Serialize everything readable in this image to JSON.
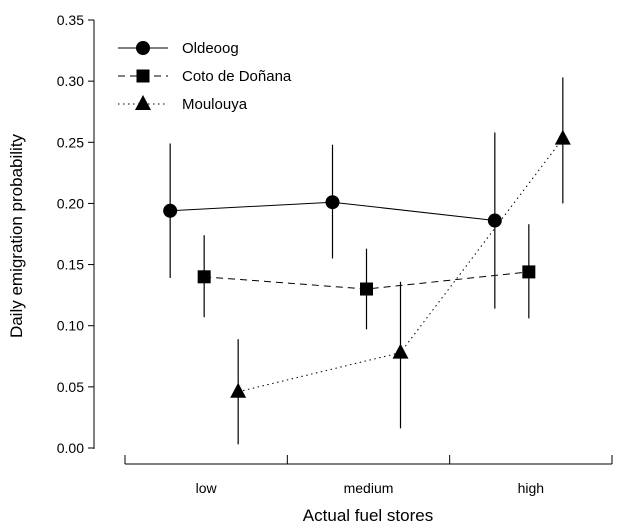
{
  "chart_data": {
    "type": "line",
    "xlabel": "Actual fuel stores",
    "ylabel": "Daily emigration probability",
    "categories": [
      "low",
      "medium",
      "high"
    ],
    "ylim": [
      0,
      0.35
    ],
    "yticks": [
      "0.00",
      "0.05",
      "0.10",
      "0.15",
      "0.20",
      "0.25",
      "0.30",
      "0.35"
    ],
    "legend_position": "top-left",
    "series": [
      {
        "name": "Oldeoog",
        "marker": "circle",
        "line": "solid",
        "values": [
          0.194,
          0.201,
          0.186
        ],
        "lower": [
          0.139,
          0.155,
          0.114
        ],
        "upper": [
          0.249,
          0.248,
          0.258
        ]
      },
      {
        "name": "Coto de Doñana",
        "marker": "square",
        "line": "dashed",
        "values": [
          0.14,
          0.13,
          0.144
        ],
        "lower": [
          0.107,
          0.097,
          0.106
        ],
        "upper": [
          0.174,
          0.163,
          0.183
        ]
      },
      {
        "name": "Moulouya",
        "marker": "triangle",
        "line": "dotted",
        "values": [
          0.046,
          0.078,
          0.253
        ],
        "lower": [
          0.003,
          0.016,
          0.2
        ],
        "upper": [
          0.089,
          0.136,
          0.303
        ]
      }
    ]
  }
}
